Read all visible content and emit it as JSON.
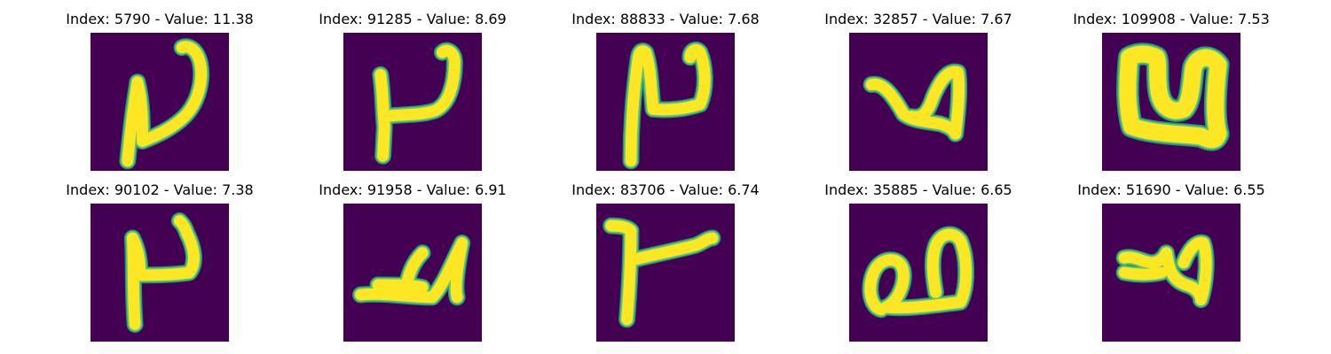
{
  "colors": {
    "background": "#440154",
    "stroke_edge": "#21918c",
    "stroke_mid": "#5ec962",
    "stroke_core": "#fde725"
  },
  "panels": [
    {
      "title": "Index: 5790 - Value: 11.38",
      "index": 5790,
      "value": 11.38
    },
    {
      "title": "Index: 91285 - Value: 8.69",
      "index": 91285,
      "value": 8.69
    },
    {
      "title": "Index: 88833 - Value: 7.68",
      "index": 88833,
      "value": 7.68
    },
    {
      "title": "Index: 32857 - Value: 7.67",
      "index": 32857,
      "value": 7.67
    },
    {
      "title": "Index: 109908 - Value: 7.53",
      "index": 109908,
      "value": 7.53
    },
    {
      "title": "Index: 90102 - Value: 7.38",
      "index": 90102,
      "value": 7.38
    },
    {
      "title": "Index: 91958 - Value: 6.91",
      "index": 91958,
      "value": 6.91
    },
    {
      "title": "Index: 83706 - Value: 6.74",
      "index": 83706,
      "value": 6.74
    },
    {
      "title": "Index: 35885 - Value: 6.65",
      "index": 35885,
      "value": 6.65
    },
    {
      "title": "Index: 51690 - Value: 6.55",
      "index": 51690,
      "value": 6.55
    }
  ]
}
